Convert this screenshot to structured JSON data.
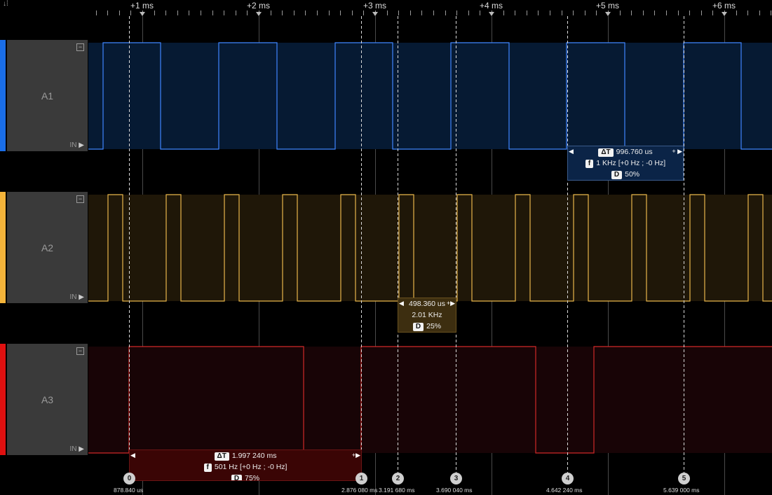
{
  "timeline": {
    "labels": [
      "+1 ms",
      "+2 ms",
      "+3 ms",
      "+4 ms",
      "+5 ms",
      "+6 ms"
    ]
  },
  "channels": [
    {
      "name": "A1",
      "in_label": "IN",
      "color": "#1a6ee8",
      "wave_color": "#3f86ff",
      "fill": "#061a33"
    },
    {
      "name": "A2",
      "in_label": "IN",
      "color": "#f4b43a",
      "wave_color": "#e8b64a",
      "fill": "#1f1708"
    },
    {
      "name": "A3",
      "in_label": "IN",
      "color": "#e01010",
      "wave_color": "#d02828",
      "fill": "#180406"
    }
  ],
  "measurements": {
    "a1": {
      "delta_badge": "ΔT",
      "delta": "996.760 us",
      "freq_badge": "f",
      "freq": "1 KHz [+0 Hz ; -0 Hz]",
      "duty_badge": "D",
      "duty": "50%"
    },
    "a2": {
      "period": "498.360 us",
      "freq": "2.01 KHz",
      "duty_badge": "D",
      "duty": "25%"
    },
    "a3": {
      "delta_badge": "ΔT",
      "delta": "1.997 240 ms",
      "freq_badge": "f",
      "freq": "501 Hz [+0 Hz ; -0 Hz]",
      "duty_badge": "D",
      "duty": "75%"
    }
  },
  "cursors": [
    {
      "id": "0",
      "time": "878.840 us"
    },
    {
      "id": "1",
      "time": "2.876 080 ms"
    },
    {
      "id": "2",
      "time": "3.191 680 ms"
    },
    {
      "id": "3",
      "time": "3.690 040 ms"
    },
    {
      "id": "4",
      "time": "4.642 240 ms"
    },
    {
      "id": "5",
      "time": "5.639 000 ms"
    }
  ]
}
